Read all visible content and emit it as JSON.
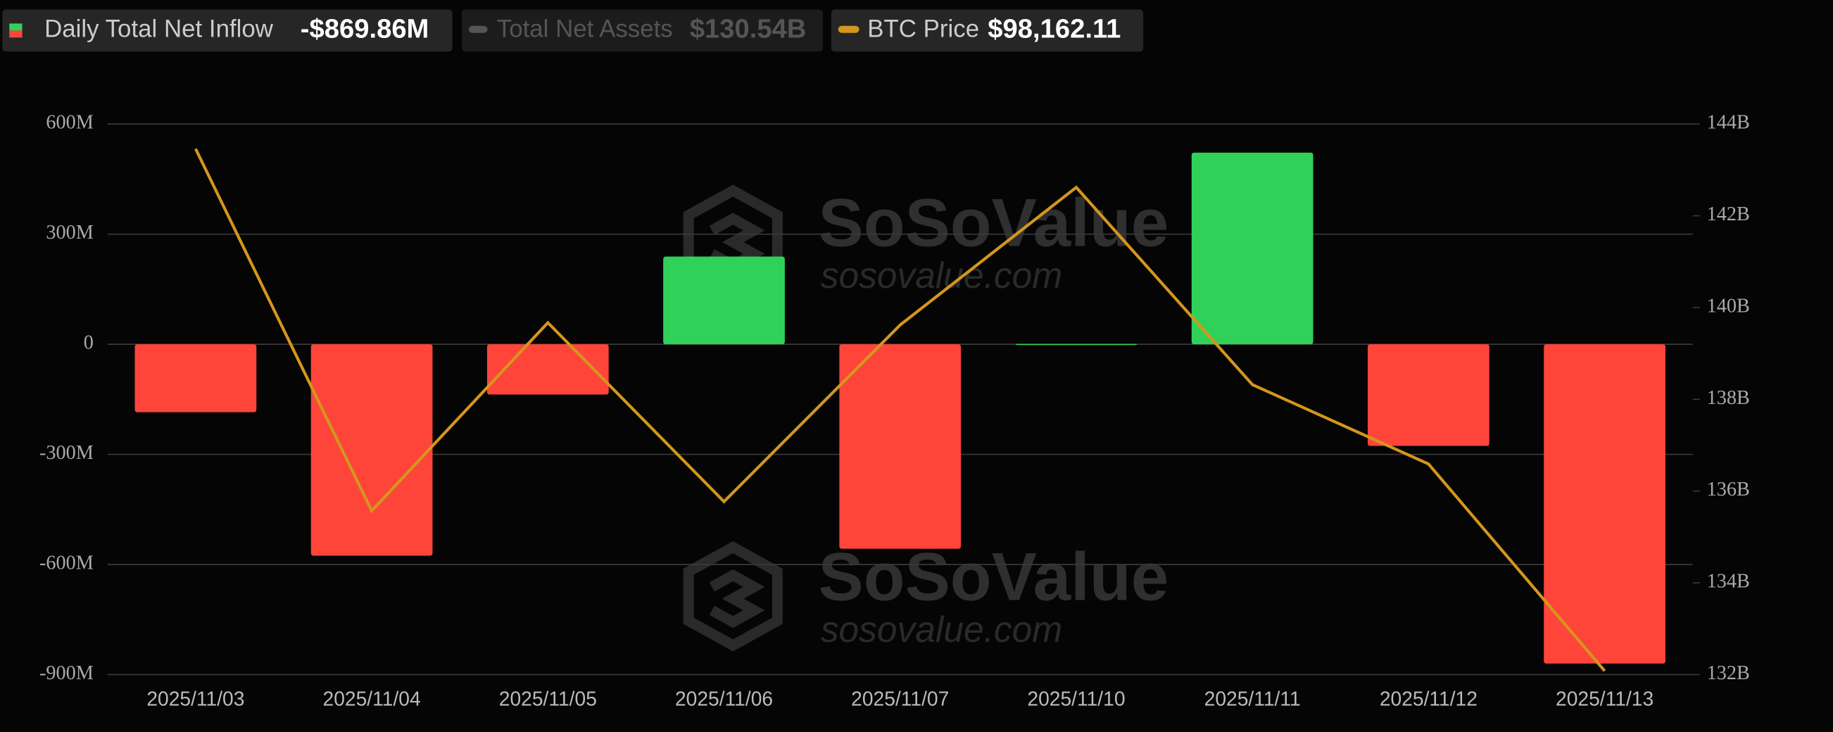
{
  "chart_data": {
    "type": "bar_line",
    "categories": [
      "2025/11/03",
      "2025/11/04",
      "2025/11/05",
      "2025/11/06",
      "2025/11/07",
      "2025/11/10",
      "2025/11/11",
      "2025/11/12",
      "2025/11/13"
    ],
    "series": [
      {
        "name": "Daily Total Net Inflow",
        "summary": "-$869.86M",
        "type": "bar",
        "positive_color": "#30d158",
        "negative_color": "#ff453a",
        "values": [
          -185,
          -576,
          -137,
          239,
          -557,
          1,
          522,
          -277,
          -869.86
        ]
      },
      {
        "name": "Total Net Assets",
        "summary": "$130.54B",
        "visible": false,
        "color": "#555555"
      },
      {
        "name": "BTC Price",
        "summary": "$98,162.11",
        "type": "line",
        "axis": "y2",
        "color": "#d4961c",
        "values": [
          143.46,
          135.57,
          139.67,
          135.77,
          139.62,
          142.62,
          138.32,
          136.59,
          132.08
        ]
      }
    ],
    "ylim": [
      -900,
      600
    ],
    "yticks": [
      {
        "value": -900,
        "label": "-900M"
      },
      {
        "value": -600,
        "label": "-600M"
      },
      {
        "value": -300,
        "label": "-300M"
      },
      0,
      {
        "value": 300,
        "label": "300M"
      },
      {
        "value": 600,
        "label": "600M"
      }
    ],
    "y2lim": [
      132,
      144
    ],
    "y2ticks": [
      {
        "value": 132,
        "label": "132B"
      },
      {
        "value": 134,
        "label": "134B"
      },
      {
        "value": 136,
        "label": "136B"
      },
      {
        "value": 138,
        "label": "138B"
      },
      {
        "value": 140,
        "label": "140B"
      },
      {
        "value": 142,
        "label": "142B"
      },
      {
        "value": 144,
        "label": "144B"
      }
    ],
    "grid": true,
    "watermark": {
      "brand": "SoSoValue",
      "site": "sosovalue.com"
    }
  }
}
